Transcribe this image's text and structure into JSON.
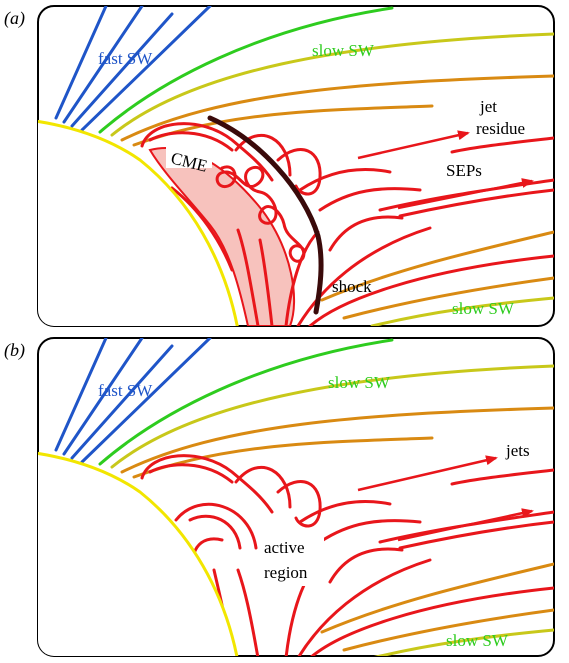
{
  "colors": {
    "fast_sw": "#1f55c8",
    "slow_sw": "#2ecc1f",
    "closed_field": "#e8161b",
    "yellow": "#f2e600",
    "orange": "#d98a12",
    "olive": "#c8c81a",
    "shock": "#3a0a0a",
    "cme_fill": "#f7c2bd"
  },
  "panel_a": {
    "tag": "(a)",
    "fast_sw": "fast SW",
    "slow_sw_top": "slow SW",
    "slow_sw_bottom": "slow SW",
    "cme": "CME",
    "shock": "shock",
    "jet_line1": "jet",
    "jet_line2": "residue",
    "seps": "SEPs"
  },
  "panel_b": {
    "tag": "(b)",
    "fast_sw": "fast SW",
    "slow_sw_top": "slow SW",
    "slow_sw_bottom": "slow SW",
    "jets": "jets",
    "ar_line1": "active",
    "ar_line2": "region"
  }
}
